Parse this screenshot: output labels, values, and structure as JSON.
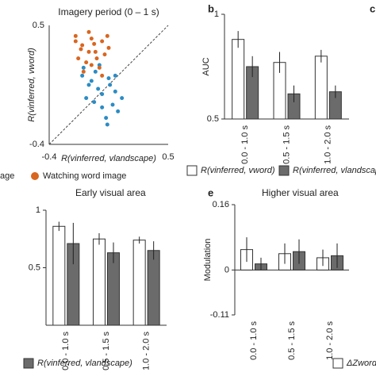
{
  "panel_c_label": "c",
  "chart_data": [
    {
      "type": "scatter",
      "title": "Imagery period (0 – 1 s)",
      "xlabel": "R(vinferred, vlandscape)",
      "ylabel": "R(vinferred, vword)",
      "xlim": [
        -0.4,
        0.5
      ],
      "ylim": [
        -0.4,
        0.5
      ],
      "xticks": [
        -0.4,
        0.5
      ],
      "yticks": [
        -0.4,
        0.5
      ],
      "series": [
        {
          "name": "age",
          "color": "#2b8cc4",
          "x": [
            -0.15,
            -0.1,
            -0.05,
            0.0,
            0.05,
            0.1,
            -0.12,
            -0.02,
            0.08,
            0.12,
            -0.08,
            0.03,
            0.15,
            -0.03,
            0.06,
            -0.14,
            0.1,
            0.0,
            0.04,
            -0.06
          ],
          "values": [
            0.12,
            0.05,
            0.15,
            -0.02,
            0.1,
            0.0,
            -0.05,
            0.2,
            -0.1,
            -0.15,
            0.08,
            -0.2,
            -0.05,
            0.02,
            0.05,
            0.18,
            0.12,
            -0.12,
            -0.25,
            -0.08
          ]
        },
        {
          "name": "Watching word image",
          "color": "#d9661f",
          "x": [
            -0.2,
            -0.15,
            -0.1,
            -0.05,
            0.0,
            -0.18,
            -0.12,
            -0.08,
            0.02,
            -0.02,
            -0.16,
            -0.06,
            0.04,
            -0.1,
            -0.14,
            -0.04,
            0.0,
            -0.2,
            -0.08,
            0.05
          ],
          "values": [
            0.42,
            0.35,
            0.45,
            0.3,
            0.38,
            0.25,
            0.22,
            0.4,
            0.28,
            0.18,
            0.32,
            0.36,
            0.42,
            0.3,
            0.15,
            0.25,
            0.12,
            0.38,
            0.2,
            0.33
          ]
        }
      ]
    },
    {
      "type": "bar",
      "panel_label": "b",
      "ylabel": "AUC",
      "categories": [
        "0.0 - 1.0 s",
        "0.5 - 1.5 s",
        "1.0 - 2.0 s"
      ],
      "ylim": [
        0.5,
        1
      ],
      "yticks": [
        0.5,
        1
      ],
      "series": [
        {
          "name": "R(vinferred, vword)",
          "color": "#ffffff",
          "values": [
            0.88,
            0.77,
            0.8
          ],
          "errors": [
            0.04,
            0.05,
            0.03
          ]
        },
        {
          "name": "R(vinferred, vlandscape)",
          "color": "#6b6b6b",
          "values": [
            0.75,
            0.62,
            0.63
          ],
          "errors": [
            0.05,
            0.04,
            0.03
          ]
        }
      ]
    },
    {
      "type": "bar",
      "title": "Early visual area",
      "categories": [
        "0.0 - 1.0 s",
        "0.5 - 1.5 s",
        "1.0 - 2.0 s"
      ],
      "ylim": [
        0,
        1
      ],
      "yticks": [
        0.5,
        1
      ],
      "series": [
        {
          "color": "#ffffff",
          "values": [
            0.86,
            0.75,
            0.74
          ],
          "errors": [
            0.04,
            0.05,
            0.03
          ]
        },
        {
          "name": "R(vinferred, vlandscape)",
          "color": "#6b6b6b",
          "values": [
            0.71,
            0.63,
            0.65
          ],
          "errors": [
            0.18,
            0.09,
            0.08
          ]
        }
      ]
    },
    {
      "type": "bar",
      "panel_label": "e",
      "title": "Higher visual area",
      "ylabel": "Modulation",
      "categories": [
        "0.0 - 1.0 s",
        "0.5 - 1.5 s",
        "1.0 - 2.0 s"
      ],
      "ylim": [
        -0.11,
        0.16
      ],
      "yticks": [
        -0.11,
        0,
        0.16
      ],
      "series": [
        {
          "name": "ΔZword",
          "color": "#ffffff",
          "values": [
            0.05,
            0.04,
            0.03
          ],
          "errors": [
            0.03,
            0.025,
            0.02
          ]
        },
        {
          "color": "#6b6b6b",
          "values": [
            0.015,
            0.045,
            0.035
          ],
          "errors": [
            0.015,
            0.03,
            0.03
          ]
        }
      ]
    }
  ]
}
